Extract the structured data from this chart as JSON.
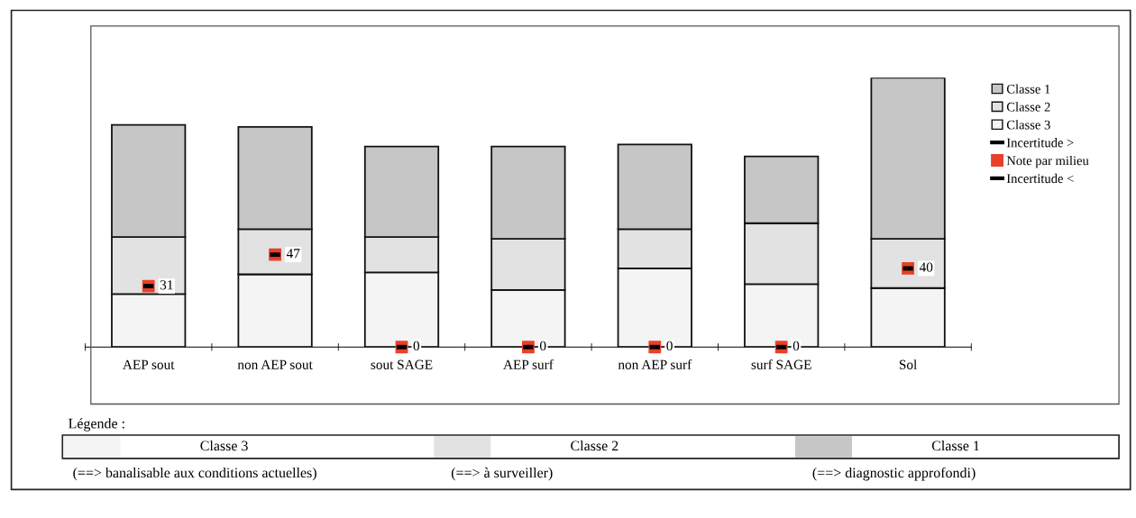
{
  "chart_data": {
    "type": "bar",
    "stacked": true,
    "categories": [
      "AEP sout",
      "non AEP sout",
      "sout SAGE",
      "AEP surf",
      "non AEP surf",
      "surf SAGE",
      "Sol"
    ],
    "tick_labels": "x",
    "grid": false,
    "legend": "top right",
    "series": [
      {
        "name": "Classe 3",
        "color": "#f4f4f4",
        "values": [
          27,
          37,
          38,
          29,
          40,
          32,
          30
        ]
      },
      {
        "name": "Classe 2",
        "color": "#e2e2e2",
        "values": [
          29,
          23,
          18,
          26,
          20,
          31,
          25
        ]
      },
      {
        "name": "Classe 1",
        "color": "#c6c6c6",
        "values": [
          57,
          52,
          46,
          47,
          43,
          34,
          82
        ]
      },
      {
        "name": "Note par milieu",
        "type": "scatter",
        "marker": "square",
        "color": "#e8402a",
        "values": [
          31,
          47,
          0,
          0,
          0,
          0,
          40
        ],
        "value_labels": [
          "31",
          "47",
          "0",
          "0",
          "0",
          "0",
          "40"
        ]
      }
    ],
    "annotations": [
      "Incertitude >",
      "Incertitude <",
      "Légende :",
      "Classe 3",
      "Classe 2",
      "Classe 1",
      "(==> banalisable aux conditions actuelles)",
      "(==> à surveiller)",
      "(==> diagnostic approfondi)"
    ]
  }
}
